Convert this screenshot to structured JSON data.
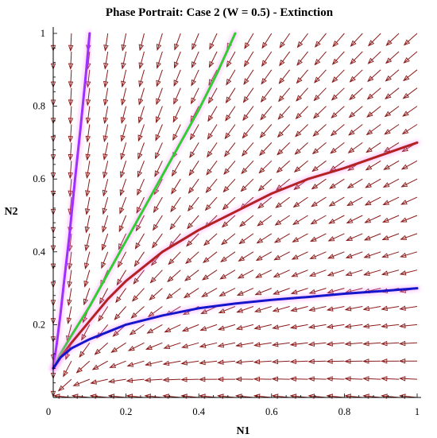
{
  "chart_data": {
    "type": "line",
    "title": "Phase Portrait: Case 2 (W = 0.5) - Extinction",
    "xlabel": "N1",
    "ylabel": "N2",
    "xlim": [
      0,
      1
    ],
    "ylim": [
      0,
      1
    ],
    "origin_label": "0",
    "xticks": [
      "0.2",
      "0.4",
      "0.6",
      "0.8",
      "1"
    ],
    "yticks": [
      "0.2",
      "0.4",
      "0.6",
      "0.8",
      "1"
    ],
    "grid": false,
    "legend": "none",
    "vector_field": {
      "color": "#8b1a1a",
      "dN1": "-0.1*N1",
      "dN2": "-0.1*N2 + 0.01*N1"
    },
    "series": [
      {
        "color": "#9b30ff",
        "x": [
          0.0,
          0.01,
          0.02,
          0.03,
          0.045,
          0.06,
          0.075,
          0.09,
          0.1
        ],
        "y": [
          0.08,
          0.15,
          0.23,
          0.32,
          0.45,
          0.6,
          0.74,
          0.89,
          1.0
        ]
      },
      {
        "color": "#32cd32",
        "x": [
          0.0,
          0.02,
          0.05,
          0.1,
          0.15,
          0.2,
          0.25,
          0.3,
          0.35,
          0.4,
          0.45,
          0.5
        ],
        "y": [
          0.08,
          0.12,
          0.17,
          0.25,
          0.34,
          0.43,
          0.52,
          0.61,
          0.7,
          0.79,
          0.89,
          1.0
        ]
      },
      {
        "color": "#b22222",
        "x": [
          0.0,
          0.02,
          0.05,
          0.1,
          0.15,
          0.2,
          0.3,
          0.4,
          0.5,
          0.6,
          0.7,
          0.8,
          0.9,
          1.0
        ],
        "y": [
          0.08,
          0.11,
          0.15,
          0.21,
          0.27,
          0.32,
          0.4,
          0.46,
          0.51,
          0.56,
          0.6,
          0.63,
          0.665,
          0.7
        ]
      },
      {
        "color": "#1515cc",
        "x": [
          0.0,
          0.02,
          0.05,
          0.1,
          0.15,
          0.2,
          0.3,
          0.4,
          0.5,
          0.6,
          0.7,
          0.8,
          0.9,
          1.0
        ],
        "y": [
          0.08,
          0.11,
          0.135,
          0.16,
          0.18,
          0.2,
          0.225,
          0.245,
          0.258,
          0.268,
          0.276,
          0.285,
          0.292,
          0.3
        ]
      }
    ]
  }
}
